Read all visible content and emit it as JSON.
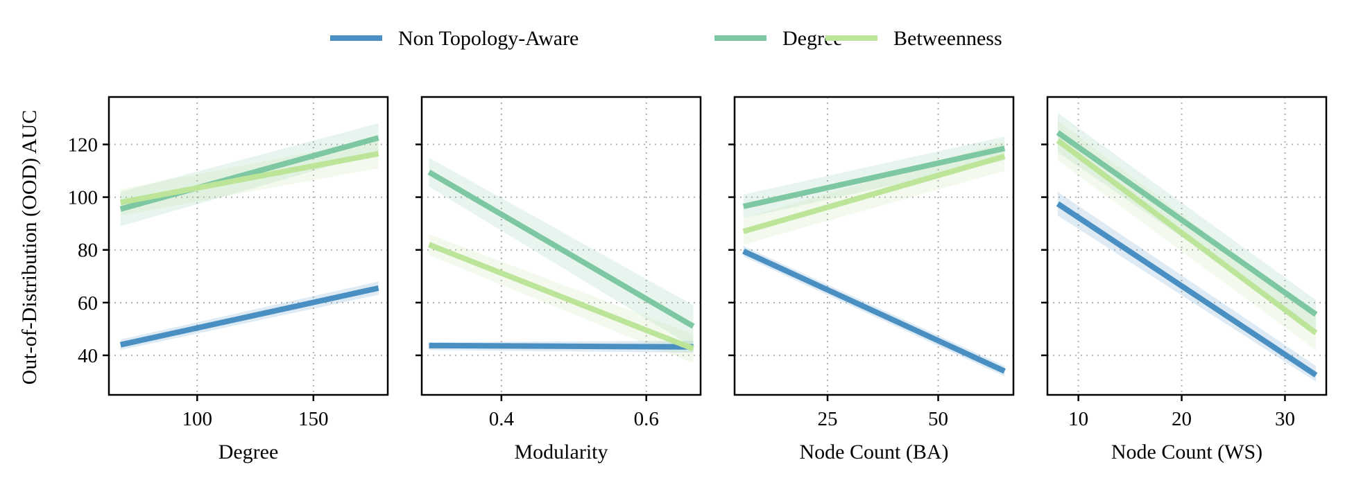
{
  "chart_data": {
    "type": "line",
    "ylabel": "Out-of-Distribution (OOD) AUC",
    "legend": {
      "placement": "top-center",
      "entries": [
        {
          "name": "Non Topology-Aware",
          "color": "#4a8fc2"
        },
        {
          "name": "Degree",
          "color": "#7dc8a2"
        },
        {
          "name": "Betweenness",
          "color": "#bde59a"
        }
      ]
    },
    "grid": true,
    "ylim": [
      25,
      138
    ],
    "yticks": [
      40,
      60,
      80,
      100,
      120
    ],
    "panels": [
      {
        "xlabel": "Degree",
        "xlim": [
          62,
          182
        ],
        "xticks": [
          100,
          150
        ],
        "series": [
          {
            "name": "Non Topology-Aware",
            "x": [
              67,
              178
            ],
            "y": [
              44,
              65.5
            ],
            "band": [
              [
                42,
                46
              ],
              [
                63,
                68
              ]
            ]
          },
          {
            "name": "Degree",
            "x": [
              67,
              178
            ],
            "y": [
              95.5,
              122.5
            ],
            "band": [
              [
                89,
                102
              ],
              [
                117,
                128
              ]
            ]
          },
          {
            "name": "Betweenness",
            "x": [
              67,
              178
            ],
            "y": [
              98,
              116.5
            ],
            "band": [
              [
                93,
                103
              ],
              [
                111,
                122
              ]
            ]
          }
        ]
      },
      {
        "xlabel": "Modularity",
        "xlim": [
          0.29,
          0.675
        ],
        "xticks": [
          0.4,
          0.6
        ],
        "series": [
          {
            "name": "Non Topology-Aware",
            "x": [
              0.3,
              0.665
            ],
            "y": [
              43.7,
              43.2
            ],
            "band": [
              [
                42,
                45
              ],
              [
                41,
                45.5
              ]
            ]
          },
          {
            "name": "Degree",
            "x": [
              0.3,
              0.665
            ],
            "y": [
              109.5,
              51
            ],
            "band": [
              [
                104,
                115
              ],
              [
                43,
                59
              ]
            ]
          },
          {
            "name": "Betweenness",
            "x": [
              0.3,
              0.665
            ],
            "y": [
              82,
              42.5
            ],
            "band": [
              [
                78,
                86
              ],
              [
                37,
                48
              ]
            ]
          }
        ]
      },
      {
        "xlabel": "Node Count (BA)",
        "xlim": [
          4,
          67
        ],
        "xticks": [
          25,
          50
        ],
        "series": [
          {
            "name": "Non Topology-Aware",
            "x": [
              6,
              65
            ],
            "y": [
              79.5,
              34
            ],
            "band": [
              [
                77.5,
                81.5
              ],
              [
                32,
                36
              ]
            ]
          },
          {
            "name": "Degree",
            "x": [
              6,
              65
            ],
            "y": [
              96.5,
              118.5
            ],
            "band": [
              [
                92,
                101
              ],
              [
                114,
                123
              ]
            ]
          },
          {
            "name": "Betweenness",
            "x": [
              6,
              65
            ],
            "y": [
              87,
              115.5
            ],
            "band": [
              [
                82,
                92
              ],
              [
                110,
                121
              ]
            ]
          }
        ]
      },
      {
        "xlabel": "Node Count (WS)",
        "xlim": [
          7,
          34
        ],
        "xticks": [
          10,
          20,
          30
        ],
        "series": [
          {
            "name": "Non Topology-Aware",
            "x": [
              8,
              33
            ],
            "y": [
              97.5,
              32.5
            ],
            "band": [
              [
                93,
                102
              ],
              [
                30,
                36
              ]
            ]
          },
          {
            "name": "Degree",
            "x": [
              8,
              33
            ],
            "y": [
              124.5,
              55.5
            ],
            "band": [
              [
                117,
                132
              ],
              [
                50,
                61
              ]
            ]
          },
          {
            "name": "Betweenness",
            "x": [
              8,
              33
            ],
            "y": [
              121.5,
              48.5
            ],
            "band": [
              [
                114,
                129
              ],
              [
                42,
                55
              ]
            ]
          }
        ]
      }
    ]
  }
}
